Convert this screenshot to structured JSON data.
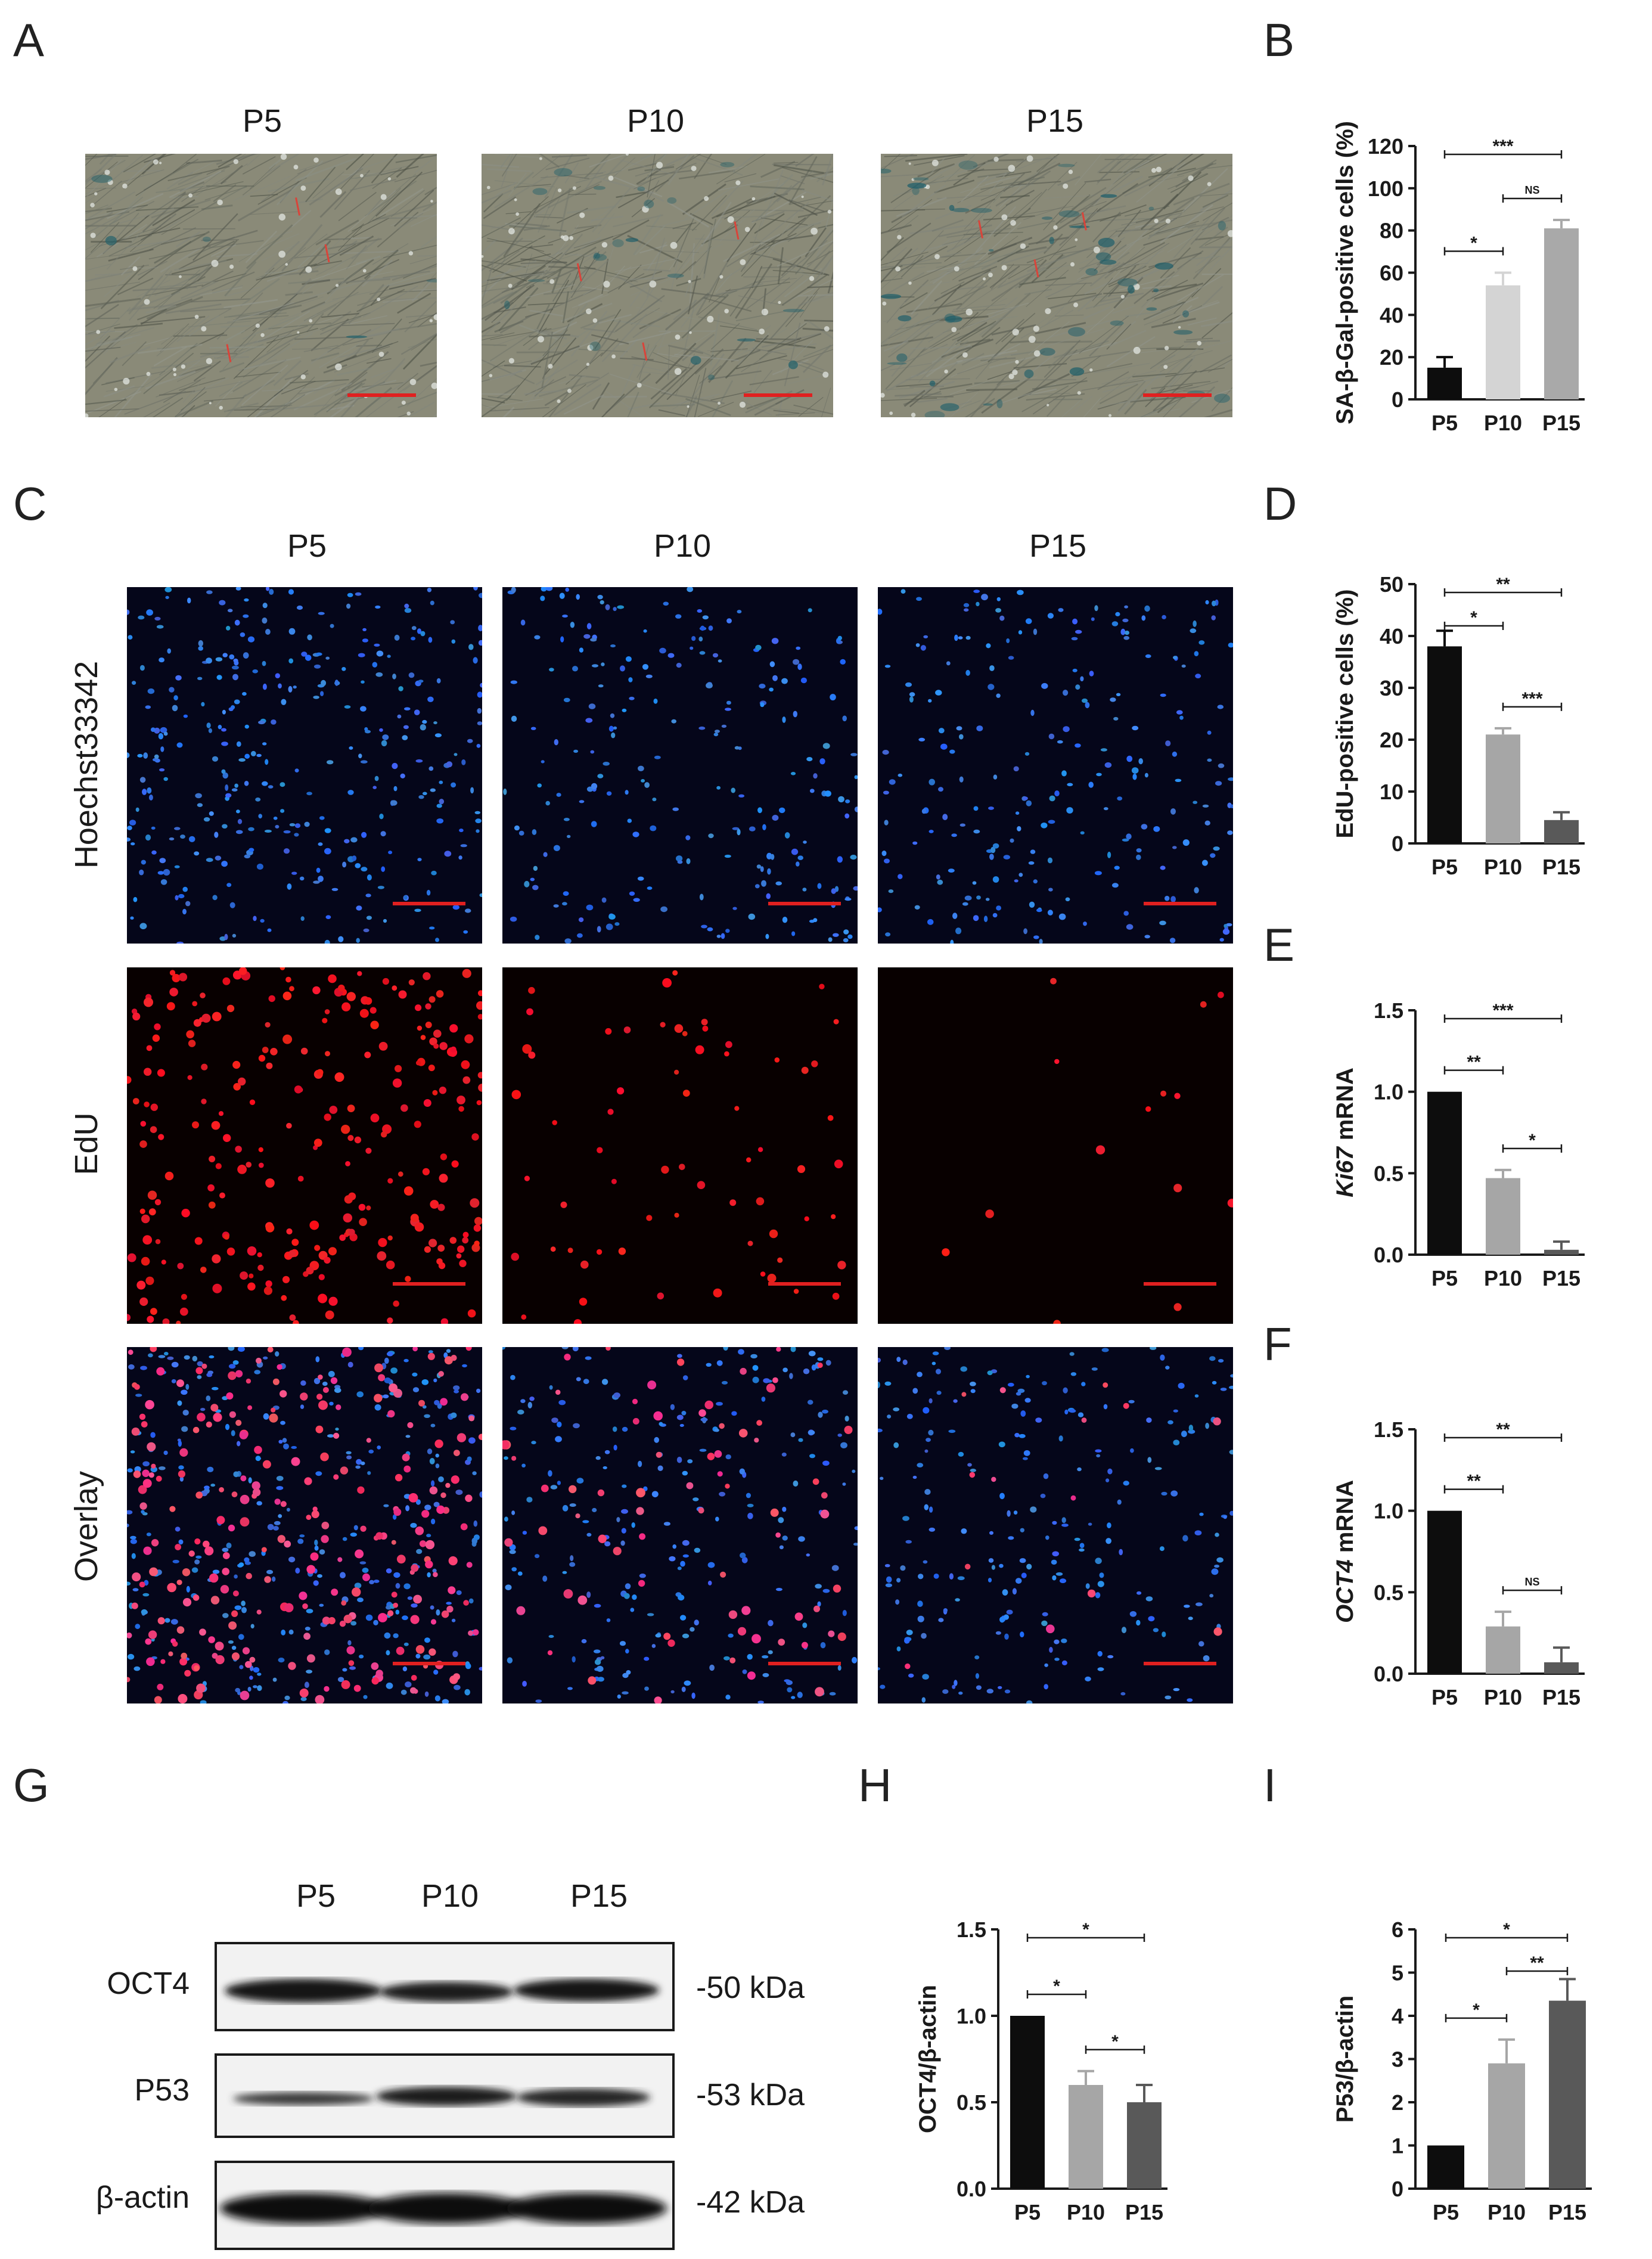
{
  "panel_letters": [
    "A",
    "B",
    "C",
    "D",
    "E",
    "F",
    "G",
    "H",
    "I"
  ],
  "panel_a": {
    "columns": [
      "P5",
      "P10",
      "P15"
    ]
  },
  "panel_c": {
    "columns": [
      "P5",
      "P10",
      "P15"
    ],
    "rows": [
      "Hoechst33342",
      "EdU",
      "Overlay"
    ]
  },
  "panel_g": {
    "lanes": [
      "P5",
      "P10",
      "P15"
    ],
    "bands": [
      {
        "name": "OCT4",
        "kda": "-50 kDa"
      },
      {
        "name": "P53",
        "kda": "-53 kDa"
      },
      {
        "name": "β-actin",
        "kda": "-42 kDa"
      }
    ]
  },
  "colors": {
    "p5": "#0d0d0d",
    "p10_light": "#d0d0d0",
    "p10": "#a6a6a6",
    "p15": "#595959",
    "scale_bar": "#e02020"
  },
  "chart_data": [
    {
      "panel": "B",
      "type": "bar",
      "categories": [
        "P5",
        "P10",
        "P15"
      ],
      "values": [
        15,
        54,
        81
      ],
      "errors": [
        5,
        6,
        4
      ],
      "ylabel": "SA-β-Gal-positive cells (%)",
      "ylim": [
        0,
        120
      ],
      "yticks": [
        "0",
        "20",
        "40",
        "60",
        "80",
        "100",
        "120"
      ],
      "colors": [
        "#0d0d0d",
        "#d4d4d4",
        "#a9a9a9"
      ],
      "significance": [
        {
          "from": 0,
          "to": 1,
          "label": "*"
        },
        {
          "from": 1,
          "to": 2,
          "label": "NS"
        },
        {
          "from": 0,
          "to": 2,
          "label": "***"
        }
      ]
    },
    {
      "panel": "D",
      "type": "bar",
      "categories": [
        "P5",
        "P10",
        "P15"
      ],
      "values": [
        38,
        21,
        4.5
      ],
      "errors": [
        3,
        1.2,
        1.5
      ],
      "ylabel": "EdU-positive cells (%)",
      "ylim": [
        0,
        50
      ],
      "yticks": [
        "0",
        "10",
        "20",
        "30",
        "40",
        "50"
      ],
      "colors": [
        "#0d0d0d",
        "#a6a6a6",
        "#595959"
      ],
      "significance": [
        {
          "from": 0,
          "to": 1,
          "label": "*"
        },
        {
          "from": 1,
          "to": 2,
          "label": "***"
        },
        {
          "from": 0,
          "to": 2,
          "label": "**"
        }
      ]
    },
    {
      "panel": "E",
      "type": "bar",
      "categories": [
        "P5",
        "P10",
        "P15"
      ],
      "values": [
        1.0,
        0.47,
        0.03
      ],
      "errors": [
        0,
        0.05,
        0.05
      ],
      "ylabel_italic": "Ki67",
      "ylabel_rest": " mRNA",
      "ylim": [
        0,
        1.5
      ],
      "yticks": [
        "0.0",
        "0.5",
        "1.0",
        "1.5"
      ],
      "colors": [
        "#0d0d0d",
        "#a6a6a6",
        "#595959"
      ],
      "significance": [
        {
          "from": 0,
          "to": 1,
          "label": "**"
        },
        {
          "from": 1,
          "to": 2,
          "label": "*"
        },
        {
          "from": 0,
          "to": 2,
          "label": "***"
        }
      ]
    },
    {
      "panel": "F",
      "type": "bar",
      "categories": [
        "P5",
        "P10",
        "P15"
      ],
      "values": [
        1.0,
        0.29,
        0.07
      ],
      "errors": [
        0,
        0.09,
        0.09
      ],
      "ylabel_italic": "OCT4",
      "ylabel_rest": " mRNA",
      "ylim": [
        0,
        1.5
      ],
      "yticks": [
        "0.0",
        "0.5",
        "1.0",
        "1.5"
      ],
      "colors": [
        "#0d0d0d",
        "#a6a6a6",
        "#595959"
      ],
      "significance": [
        {
          "from": 0,
          "to": 1,
          "label": "**"
        },
        {
          "from": 1,
          "to": 2,
          "label": "NS"
        },
        {
          "from": 0,
          "to": 2,
          "label": "**"
        }
      ]
    },
    {
      "panel": "H",
      "type": "bar",
      "categories": [
        "P5",
        "P10",
        "P15"
      ],
      "values": [
        1.0,
        0.6,
        0.5
      ],
      "errors": [
        0,
        0.08,
        0.1
      ],
      "ylabel": "OCT4/β-actin",
      "ylim": [
        0,
        1.5
      ],
      "yticks": [
        "0.0",
        "0.5",
        "1.0",
        "1.5"
      ],
      "colors": [
        "#0d0d0d",
        "#a6a6a6",
        "#595959"
      ],
      "significance": [
        {
          "from": 0,
          "to": 1,
          "label": "*"
        },
        {
          "from": 1,
          "to": 2,
          "label": "*"
        },
        {
          "from": 0,
          "to": 2,
          "label": "*"
        }
      ]
    },
    {
      "panel": "I",
      "type": "bar",
      "categories": [
        "P5",
        "P10",
        "P15"
      ],
      "values": [
        1.0,
        2.9,
        4.35
      ],
      "errors": [
        0,
        0.55,
        0.5
      ],
      "ylabel": "P53/β-actin",
      "ylim": [
        0,
        6
      ],
      "yticks": [
        "0",
        "1",
        "2",
        "3",
        "4",
        "5",
        "6"
      ],
      "colors": [
        "#0d0d0d",
        "#a6a6a6",
        "#595959"
      ],
      "significance": [
        {
          "from": 0,
          "to": 1,
          "label": "*"
        },
        {
          "from": 1,
          "to": 2,
          "label": "**"
        },
        {
          "from": 0,
          "to": 2,
          "label": "*"
        }
      ]
    }
  ]
}
